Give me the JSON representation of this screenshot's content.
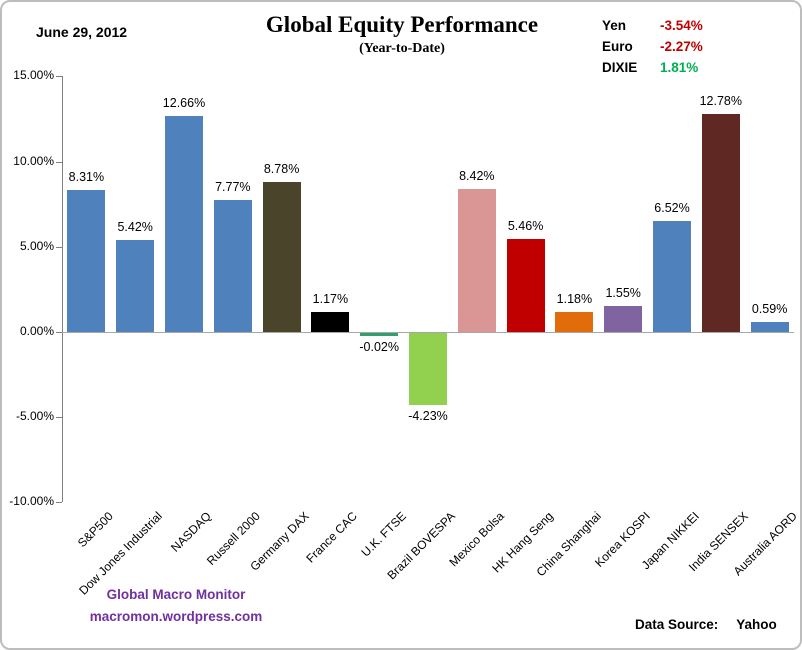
{
  "header": {
    "date": "June 29, 2012",
    "title": "Global Equity Performance",
    "subtitle": "(Year-to-Date)"
  },
  "legend": {
    "items": [
      {
        "label": "Yen",
        "value": "-3.54%",
        "color": "#C00000"
      },
      {
        "label": "Euro",
        "value": "-2.27%",
        "color": "#C00000"
      },
      {
        "label": "DIXIE",
        "value": "1.81%",
        "color": "#00B050"
      }
    ]
  },
  "chart_data": {
    "type": "bar",
    "title": "Global Equity Performance (Year-to-Date)",
    "categories": [
      "S&P500",
      "Dow Jones Industrial",
      "NASDAQ",
      "Russell 2000",
      "Germany DAX",
      "France CAC",
      "U.K. FTSE",
      "Brazil BOVESPA",
      "Mexico Bolsa",
      "HK Hang Seng",
      "China Shanghai",
      "Korea KOSPI",
      "Japan NIKKEI",
      "India SENSEX",
      "Australia AORD"
    ],
    "values": [
      8.31,
      5.42,
      12.66,
      7.77,
      8.78,
      1.17,
      -0.02,
      -4.23,
      8.42,
      5.46,
      1.18,
      1.55,
      6.52,
      12.78,
      0.59
    ],
    "data_labels": [
      "8.31%",
      "5.42%",
      "12.66%",
      "7.77%",
      "8.78%",
      "1.17%",
      "-0.02%",
      "-4.23%",
      "8.42%",
      "5.46%",
      "1.18%",
      "1.55%",
      "6.52%",
      "12.78%",
      "0.59%"
    ],
    "bar_colors": [
      "#4F81BD",
      "#4F81BD",
      "#4F81BD",
      "#4F81BD",
      "#4A452A",
      "#000000",
      "#31A06E",
      "#92D050",
      "#D99694",
      "#C00000",
      "#E36C0A",
      "#8064A2",
      "#4F81BD",
      "#5F2823",
      "#4F81BD"
    ],
    "xlabel": "",
    "ylabel": "",
    "ylim": [
      -10,
      15
    ],
    "yticks": [
      15,
      10,
      5,
      0,
      -5,
      -10
    ],
    "ytick_labels": [
      "15.00%",
      "10.00%",
      "5.00%",
      "0.00%",
      "-5.00%",
      "-10.00%"
    ],
    "grid": false,
    "legend_position": "none",
    "axis_color": "#808080",
    "zero_line_color": "#A6A6A6"
  },
  "footer": {
    "site_name": "Global Macro Monitor",
    "site_url": "macromon.wordpress.com",
    "accent_color": "#7030A0",
    "data_source_label": "Data Source:",
    "data_source_value": "Yahoo"
  }
}
